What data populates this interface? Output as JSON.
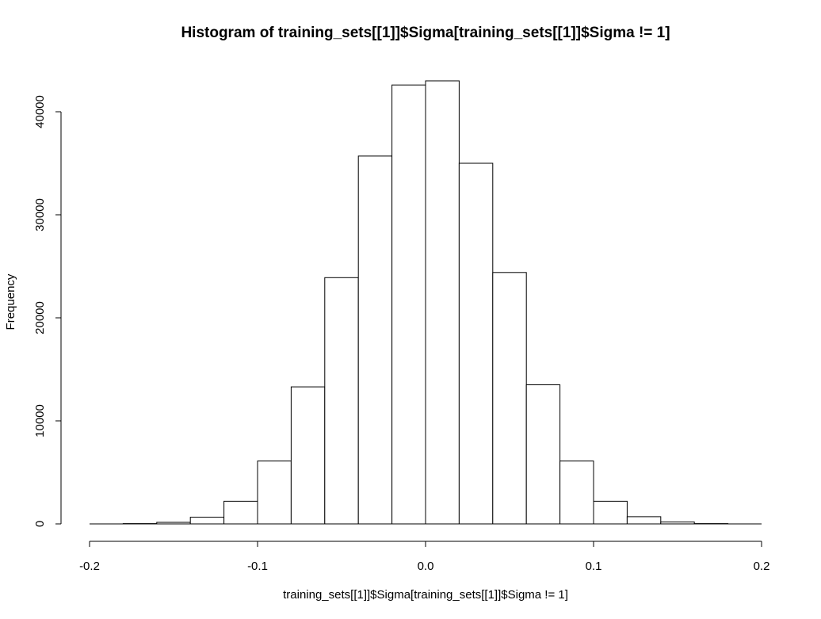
{
  "chart_data": {
    "type": "bar",
    "title": "Histogram of training_sets[[1]]$Sigma[training_sets[[1]]$Sigma != 1]",
    "xlabel": "training_sets[[1]]$Sigma[training_sets[[1]]$Sigma != 1]",
    "ylabel": "Frequency",
    "bin_edges": [
      -0.18,
      -0.16,
      -0.14,
      -0.12,
      -0.1,
      -0.08,
      -0.06,
      -0.04,
      -0.02,
      0.0,
      0.02,
      0.04,
      0.06,
      0.08,
      0.1,
      0.12,
      0.14,
      0.16,
      0.18
    ],
    "values": [
      30,
      150,
      650,
      2200,
      6100,
      13300,
      23900,
      35700,
      42600,
      43000,
      35000,
      24400,
      13500,
      6100,
      2200,
      700,
      180,
      30
    ],
    "xlim": [
      -0.2,
      0.2
    ],
    "ylim": [
      0,
      43000
    ],
    "x_ticks": [
      -0.2,
      -0.1,
      0.0,
      0.1,
      0.2
    ],
    "x_tick_labels": [
      "-0.2",
      "-0.1",
      "0.0",
      "0.1",
      "0.2"
    ],
    "y_ticks": [
      0,
      10000,
      20000,
      30000,
      40000
    ],
    "y_tick_labels": [
      "0",
      "10000",
      "20000",
      "30000",
      "40000"
    ],
    "grid": false,
    "bar_fill": "#ffffff",
    "bar_stroke": "#000000"
  }
}
